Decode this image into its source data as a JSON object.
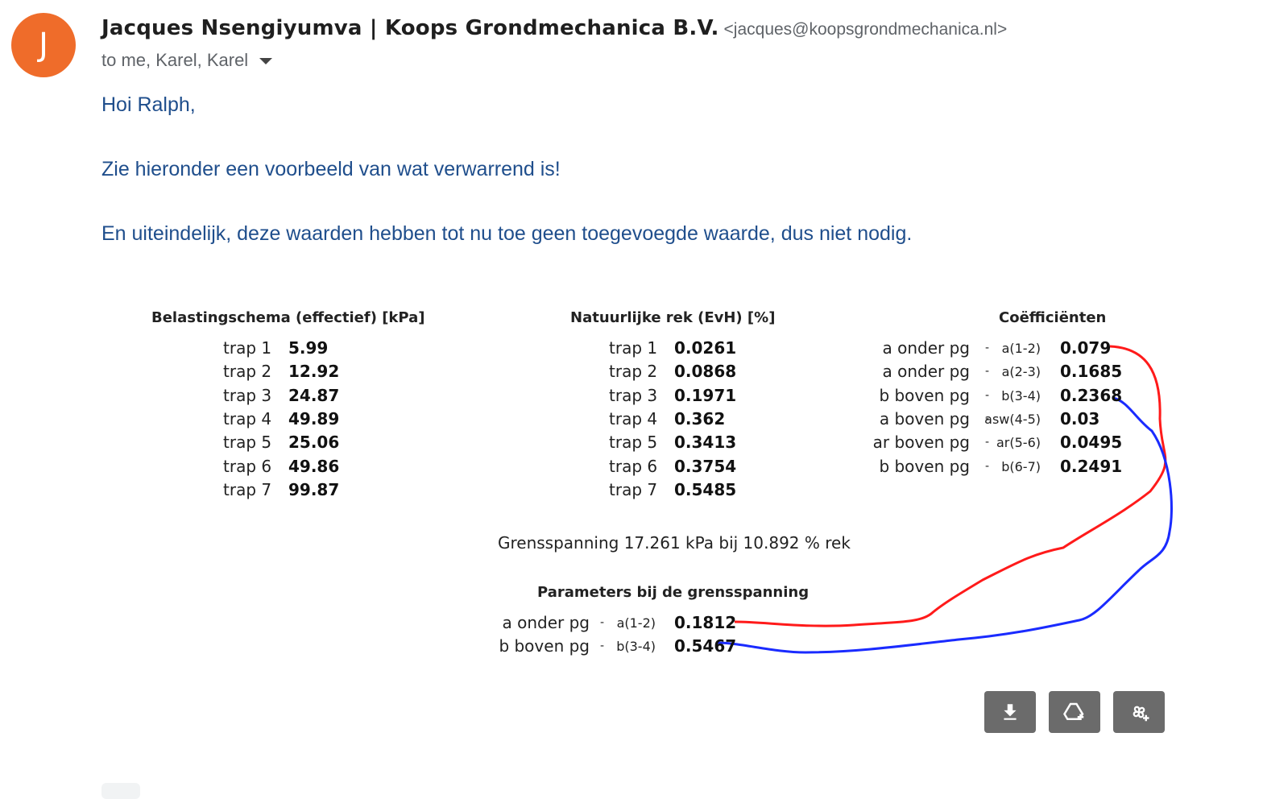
{
  "avatar_initial": "J",
  "sender": {
    "name": "Jacques Nsengiyumva | Koops Grondmechanica B.V.",
    "email": "<jacques@koopsgrondmechanica.nl>"
  },
  "recipients": "to me, Karel, Karel",
  "body_lines": [
    "Hoi Ralph,",
    "Zie hieronder een voorbeeld van wat verwarrend is!",
    "En uiteindelijk, deze waarden hebben tot nu toe geen toegevoegde waarde, dus niet nodig."
  ],
  "image": {
    "belasting": {
      "title": "Belastingschema (effectief) [kPa]",
      "rows": [
        {
          "label": "trap 1",
          "value": "5.99"
        },
        {
          "label": "trap 2",
          "value": "12.92"
        },
        {
          "label": "trap 3",
          "value": "24.87"
        },
        {
          "label": "trap 4",
          "value": "49.89"
        },
        {
          "label": "trap 5",
          "value": "25.06"
        },
        {
          "label": "trap 6",
          "value": "49.86"
        },
        {
          "label": "trap 7",
          "value": "99.87"
        }
      ]
    },
    "rek": {
      "title": "Natuurlijke rek (EvH) [%]",
      "rows": [
        {
          "label": "trap 1",
          "value": "0.0261"
        },
        {
          "label": "trap 2",
          "value": "0.0868"
        },
        {
          "label": "trap 3",
          "value": "0.1971"
        },
        {
          "label": "trap 4",
          "value": "0.362"
        },
        {
          "label": "trap 5",
          "value": "0.3413"
        },
        {
          "label": "trap 6",
          "value": "0.3754"
        },
        {
          "label": "trap 7",
          "value": "0.5485"
        }
      ]
    },
    "coef": {
      "title": "Coëfficiënten",
      "rows": [
        {
          "label": "a onder pg",
          "code": "a(1-2)",
          "value": "0.079"
        },
        {
          "label": "a onder pg",
          "code": "a(2-3)",
          "value": "0.1685"
        },
        {
          "label": "b boven pg",
          "code": "b(3-4)",
          "value": "0.2368"
        },
        {
          "label": "a boven pg",
          "code": "asw(4-5)",
          "value": "0.03"
        },
        {
          "label": "ar boven pg",
          "code": "ar(5-6)",
          "value": "0.0495"
        },
        {
          "label": "b boven pg",
          "code": "b(6-7)",
          "value": "0.2491"
        }
      ]
    },
    "grens": "Grensspanning 17.261 kPa bij 10.892 % rek",
    "params": {
      "title": "Parameters bij de grensspanning",
      "rows": [
        {
          "label": "a onder pg",
          "code": "a(1-2)",
          "value": "0.1812"
        },
        {
          "label": "b boven pg",
          "code": "b(3-4)",
          "value": "0.5467"
        }
      ]
    },
    "dash": "-",
    "annotation_colors": {
      "red": "#ff1a1a",
      "blue": "#1a2bff"
    }
  },
  "attachment_actions": [
    {
      "name": "download-icon"
    },
    {
      "name": "add-to-drive-icon"
    },
    {
      "name": "add-to-photos-icon"
    }
  ]
}
